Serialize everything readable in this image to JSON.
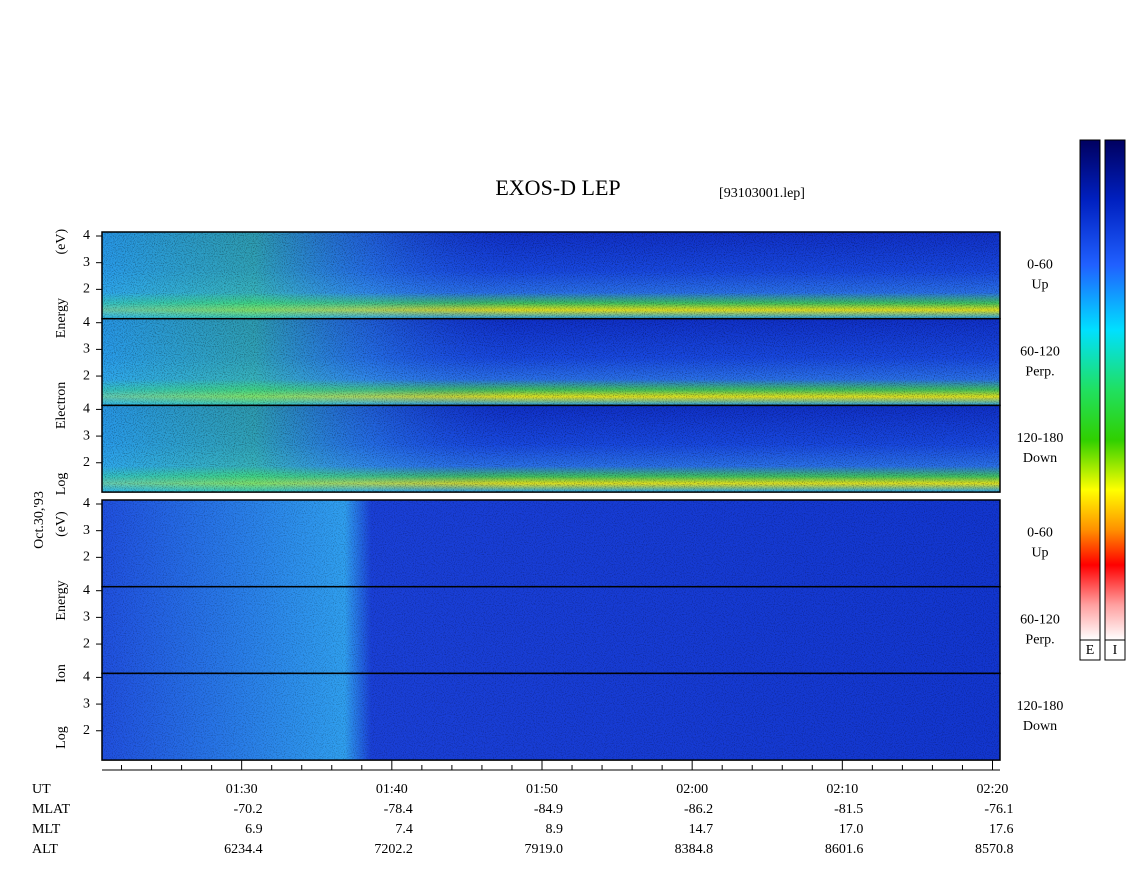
{
  "chart_data": {
    "type": "spectrogram",
    "title": "EXOS-D LEP",
    "subtitle": "[93103001.lep]",
    "date_label": "Oct.30,'93",
    "groups": [
      {
        "ylabel": "Log Electron Energy (eV)",
        "colorbar": "E",
        "panels": [
          {
            "labels": [
              "0-60",
              "Up"
            ]
          },
          {
            "labels": [
              "60-120",
              "Perp."
            ]
          },
          {
            "labels": [
              "120-180",
              "Down"
            ]
          }
        ]
      },
      {
        "ylabel": "Log Ion Energy (eV)",
        "colorbar": "I",
        "panels": [
          {
            "labels": [
              "0-60",
              "Up"
            ]
          },
          {
            "labels": [
              "60-120",
              "Perp."
            ]
          },
          {
            "labels": [
              "120-180",
              "Down"
            ]
          }
        ]
      }
    ],
    "ylim": [
      0.9,
      4.15
    ],
    "yticks": [
      2,
      3,
      4
    ],
    "xlim": [
      80.7,
      140.5
    ],
    "xticks": [
      {
        "value": 90,
        "label": "01:30"
      },
      {
        "value": 100,
        "label": "01:40"
      },
      {
        "value": 110,
        "label": "01:50"
      },
      {
        "value": 120,
        "label": "02:00"
      },
      {
        "value": 130,
        "label": "02:10"
      },
      {
        "value": 140,
        "label": "02:20"
      }
    ],
    "xminor": [
      82,
      84,
      86,
      88,
      92,
      94,
      96,
      98,
      102,
      104,
      106,
      108,
      112,
      114,
      116,
      118,
      122,
      124,
      126,
      128,
      132,
      134,
      136,
      138
    ],
    "x_label": "UT",
    "footer": [
      {
        "name": "MLAT",
        "values": [
          "-70.2",
          "-78.4",
          "-84.9",
          "-86.2",
          "-81.5",
          "-76.1"
        ]
      },
      {
        "name": "MLT",
        "values": [
          "6.9",
          "7.4",
          "8.9",
          "14.7",
          "17.0",
          "17.6"
        ]
      },
      {
        "name": "ALT",
        "values": [
          "6234.4",
          "7202.2",
          "7919.0",
          "8384.8",
          "8601.6",
          "8570.8"
        ]
      }
    ]
  }
}
